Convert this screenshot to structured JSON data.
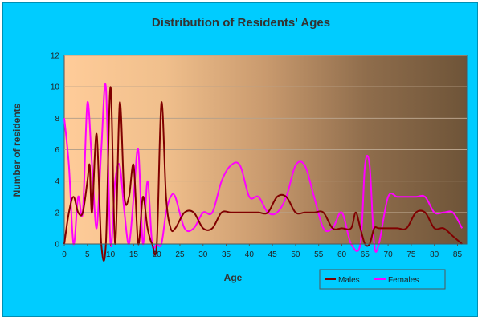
{
  "chart_data": {
    "type": "line",
    "title": "Distribution of Residents' Ages",
    "xlabel": "Age",
    "ylabel": "Number of residents",
    "xlim": [
      0,
      87
    ],
    "ylim": [
      0,
      12
    ],
    "x_ticks": [
      0,
      5,
      10,
      15,
      20,
      25,
      30,
      35,
      40,
      45,
      50,
      55,
      60,
      65,
      70,
      75,
      80,
      85
    ],
    "y_ticks": [
      0,
      2,
      4,
      6,
      8,
      10,
      12
    ],
    "grid": "horizontal",
    "legend_position": "bottom-right",
    "plot_gradient": [
      "#ffcc99",
      "#f0bf8c",
      "#c99a6e",
      "#8f6d4c",
      "#6e5438"
    ],
    "series": [
      {
        "name": "Males",
        "color": "#800000",
        "points": [
          [
            0,
            0
          ],
          [
            1,
            2
          ],
          [
            2,
            3
          ],
          [
            3,
            2
          ],
          [
            4,
            2
          ],
          [
            5,
            4
          ],
          [
            5.5,
            5
          ],
          [
            6,
            2
          ],
          [
            7,
            7
          ],
          [
            8,
            0
          ],
          [
            9,
            0
          ],
          [
            10,
            10
          ],
          [
            11,
            0
          ],
          [
            12,
            9
          ],
          [
            13,
            3
          ],
          [
            14,
            3
          ],
          [
            15,
            5
          ],
          [
            16,
            0
          ],
          [
            17,
            3
          ],
          [
            18,
            1
          ],
          [
            19,
            0
          ],
          [
            20,
            0
          ],
          [
            21,
            9
          ],
          [
            22,
            3
          ],
          [
            23,
            1
          ],
          [
            24,
            1
          ],
          [
            26,
            2
          ],
          [
            28,
            2
          ],
          [
            30,
            1
          ],
          [
            32,
            1
          ],
          [
            34,
            2
          ],
          [
            36,
            2
          ],
          [
            38,
            2
          ],
          [
            40,
            2
          ],
          [
            42,
            2
          ],
          [
            44,
            2
          ],
          [
            46,
            3
          ],
          [
            48,
            3
          ],
          [
            50,
            2
          ],
          [
            52,
            2
          ],
          [
            54,
            2
          ],
          [
            56,
            2
          ],
          [
            58,
            1
          ],
          [
            60,
            1
          ],
          [
            62,
            1
          ],
          [
            63,
            2
          ],
          [
            64,
            1
          ],
          [
            65,
            0
          ],
          [
            66,
            0
          ],
          [
            67,
            1
          ],
          [
            68,
            1
          ],
          [
            70,
            1
          ],
          [
            72,
            1
          ],
          [
            74,
            1
          ],
          [
            76,
            2
          ],
          [
            78,
            2
          ],
          [
            80,
            1
          ],
          [
            82,
            1
          ],
          [
            84,
            0.5
          ],
          [
            86,
            0
          ]
        ]
      },
      {
        "name": "Females",
        "color": "#ff00ff",
        "points": [
          [
            0,
            8
          ],
          [
            1,
            5
          ],
          [
            2,
            0
          ],
          [
            3,
            3
          ],
          [
            4,
            2
          ],
          [
            5,
            9
          ],
          [
            6,
            5
          ],
          [
            7,
            1
          ],
          [
            8,
            6
          ],
          [
            9,
            10
          ],
          [
            10,
            0
          ],
          [
            11,
            4
          ],
          [
            12,
            5
          ],
          [
            13,
            2
          ],
          [
            14,
            0
          ],
          [
            15,
            3
          ],
          [
            16,
            6
          ],
          [
            17,
            0
          ],
          [
            18,
            4
          ],
          [
            19,
            0
          ],
          [
            20,
            0
          ],
          [
            21,
            0
          ],
          [
            22,
            2
          ],
          [
            23,
            3
          ],
          [
            24,
            3
          ],
          [
            26,
            1
          ],
          [
            28,
            1
          ],
          [
            30,
            2
          ],
          [
            32,
            2
          ],
          [
            34,
            4
          ],
          [
            36,
            5
          ],
          [
            38,
            5
          ],
          [
            40,
            3
          ],
          [
            42,
            3
          ],
          [
            44,
            2
          ],
          [
            46,
            2
          ],
          [
            48,
            3
          ],
          [
            50,
            5
          ],
          [
            52,
            5
          ],
          [
            54,
            3
          ],
          [
            56,
            1
          ],
          [
            58,
            1
          ],
          [
            60,
            2
          ],
          [
            62,
            0
          ],
          [
            64,
            0
          ],
          [
            65,
            5
          ],
          [
            66,
            5
          ],
          [
            67,
            0
          ],
          [
            68,
            0
          ],
          [
            70,
            3
          ],
          [
            72,
            3
          ],
          [
            74,
            3
          ],
          [
            76,
            3
          ],
          [
            78,
            3
          ],
          [
            80,
            2
          ],
          [
            82,
            2
          ],
          [
            84,
            2
          ],
          [
            86,
            1
          ]
        ]
      }
    ]
  }
}
